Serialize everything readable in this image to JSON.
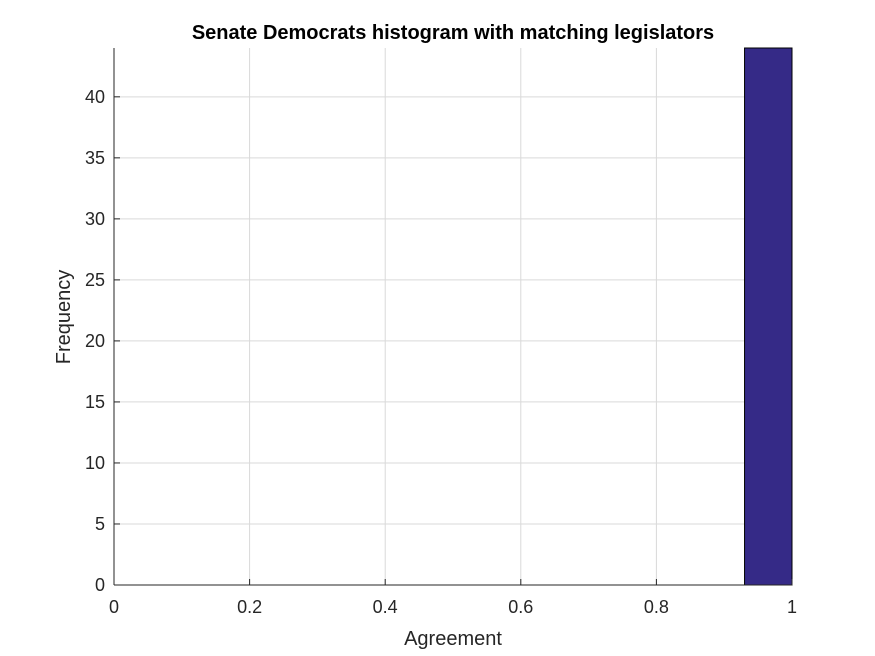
{
  "chart_data": {
    "type": "bar",
    "title": "Senate Democrats histogram with matching legislators",
    "xlabel": "Agreement",
    "ylabel": "Frequency",
    "xlim": [
      0,
      1
    ],
    "ylim": [
      0,
      44
    ],
    "xticks": [
      0,
      0.2,
      0.4,
      0.6,
      0.8,
      1
    ],
    "xtick_labels": [
      "0",
      "0.2",
      "0.4",
      "0.6",
      "0.8",
      "1"
    ],
    "yticks": [
      0,
      5,
      10,
      15,
      20,
      25,
      30,
      35,
      40
    ],
    "ytick_labels": [
      "0",
      "5",
      "10",
      "15",
      "20",
      "25",
      "30",
      "35",
      "40"
    ],
    "grid": true,
    "bar_color": "#352a87",
    "bins": [
      {
        "x0": 0.93,
        "x1": 1.0,
        "count": 44
      }
    ]
  }
}
